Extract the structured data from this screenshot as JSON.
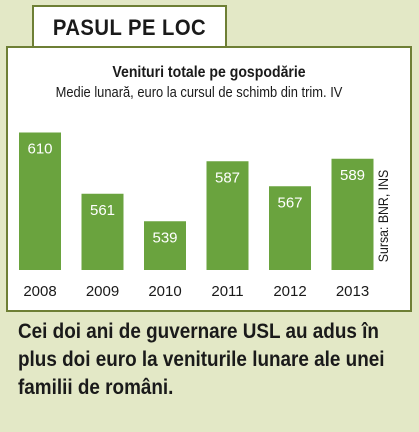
{
  "header": {
    "title": "PASUL PE LOC"
  },
  "chart_data": {
    "type": "bar",
    "title": "Venituri totale pe gospodărie",
    "subtitle": "Medie lunară, euro la cursul de schimb din trim. IV",
    "categories": [
      "2008",
      "2009",
      "2010",
      "2011",
      "2012",
      "2013"
    ],
    "values": [
      610,
      561,
      539,
      587,
      567,
      589
    ],
    "ylim": [
      500,
      620
    ],
    "grid": false,
    "source": "Sursa: BNR, INS",
    "colors": {
      "bar": "#6aa33e",
      "frame": "#6e7f35",
      "background": "#e3e8c6"
    }
  },
  "caption": "Cei doi ani de guvernare USL au adus în plus doi euro la veniturile lunare ale unei familii de români."
}
